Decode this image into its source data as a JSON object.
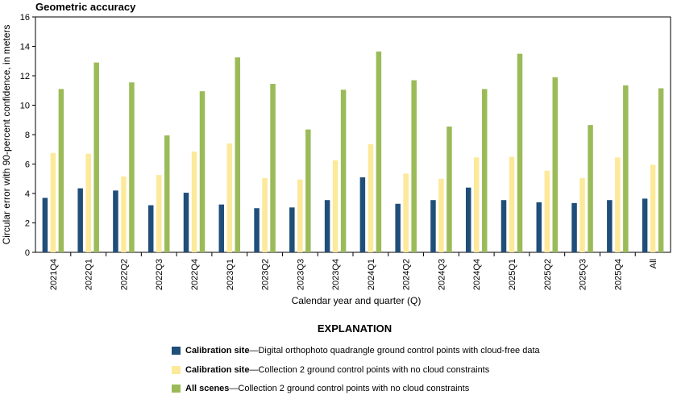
{
  "chart_data": {
    "type": "bar",
    "title": "Geometric accuracy",
    "ylabel": "Circular error with 90-percent confidence, in meters",
    "xlabel": "Calendar year and quarter (Q)",
    "ylim": [
      0,
      16
    ],
    "yticks": [
      0,
      2,
      4,
      6,
      8,
      10,
      12,
      14,
      16
    ],
    "grid": false,
    "categories": [
      "2021Q4",
      "2022Q1",
      "2022Q2",
      "2022Q3",
      "2022Q4",
      "2023Q1",
      "2023Q2",
      "2023Q3",
      "2023Q4",
      "2024Q1",
      "2024Q2",
      "2024Q3",
      "2024Q4",
      "2025Q1",
      "2025Q2",
      "2025Q3",
      "2025Q4",
      "All"
    ],
    "series": [
      {
        "color": "#1f4e79",
        "values": [
          3.7,
          4.35,
          4.2,
          3.2,
          4.05,
          3.25,
          3.0,
          3.05,
          3.55,
          5.1,
          3.3,
          3.55,
          4.4,
          3.55,
          3.4,
          3.35,
          3.55,
          3.65
        ]
      },
      {
        "color": "#fce99a",
        "values": [
          6.75,
          6.7,
          5.15,
          5.25,
          6.85,
          7.4,
          5.05,
          4.95,
          6.25,
          7.35,
          5.35,
          5.0,
          6.45,
          6.5,
          5.55,
          5.05,
          6.45,
          5.95
        ]
      },
      {
        "color": "#9bbb59",
        "values": [
          11.1,
          12.9,
          11.55,
          7.95,
          10.95,
          13.25,
          11.45,
          8.35,
          11.05,
          13.65,
          11.7,
          8.55,
          11.1,
          13.5,
          11.9,
          8.65,
          11.35,
          11.15
        ]
      }
    ]
  },
  "legend": {
    "heading": "EXPLANATION",
    "items": [
      {
        "bold": "Calibration site",
        "text": "—Digital orthophoto quadrangle ground control points with cloud-free data",
        "color": "#1f4e79"
      },
      {
        "bold": "Calibration site",
        "text": "—Collection 2 ground control points with no cloud constraints",
        "color": "#fce99a"
      },
      {
        "bold": "All scenes",
        "text": "—Collection 2 ground control points with no cloud constraints",
        "color": "#9bbb59"
      }
    ]
  }
}
